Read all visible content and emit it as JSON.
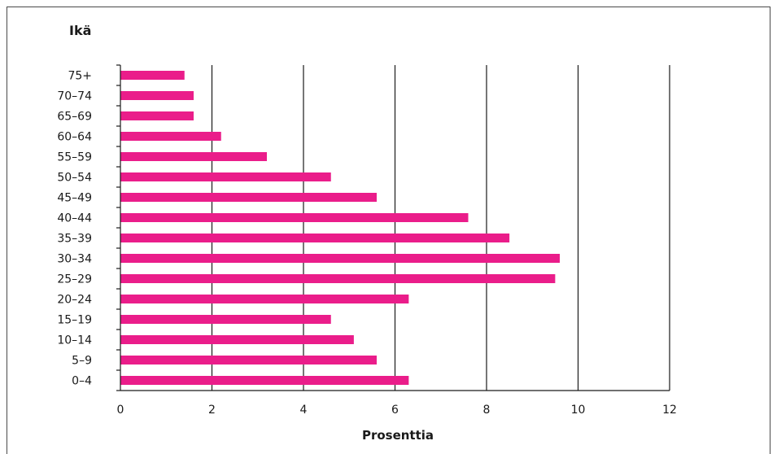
{
  "chart_data": {
    "type": "bar",
    "orientation": "horizontal",
    "title": "",
    "ylabel": "Ikä",
    "xlabel": "Prosenttia",
    "categories": [
      "0–4",
      "5–9",
      "10–14",
      "15–19",
      "20–24",
      "25–29",
      "30–34",
      "35–39",
      "40–44",
      "45–49",
      "50–54",
      "55–59",
      "60–64",
      "65–69",
      "70–74",
      "75+"
    ],
    "values": [
      6.3,
      5.6,
      5.1,
      4.6,
      6.3,
      9.5,
      9.6,
      8.5,
      7.6,
      5.6,
      4.6,
      3.2,
      2.2,
      1.6,
      1.6,
      1.4
    ],
    "xlim": [
      0,
      12
    ],
    "xticks": [
      "0",
      "2",
      "4",
      "6",
      "8",
      "10",
      "12"
    ],
    "grid": "vertical",
    "bar_color": "#ea1d8a"
  }
}
